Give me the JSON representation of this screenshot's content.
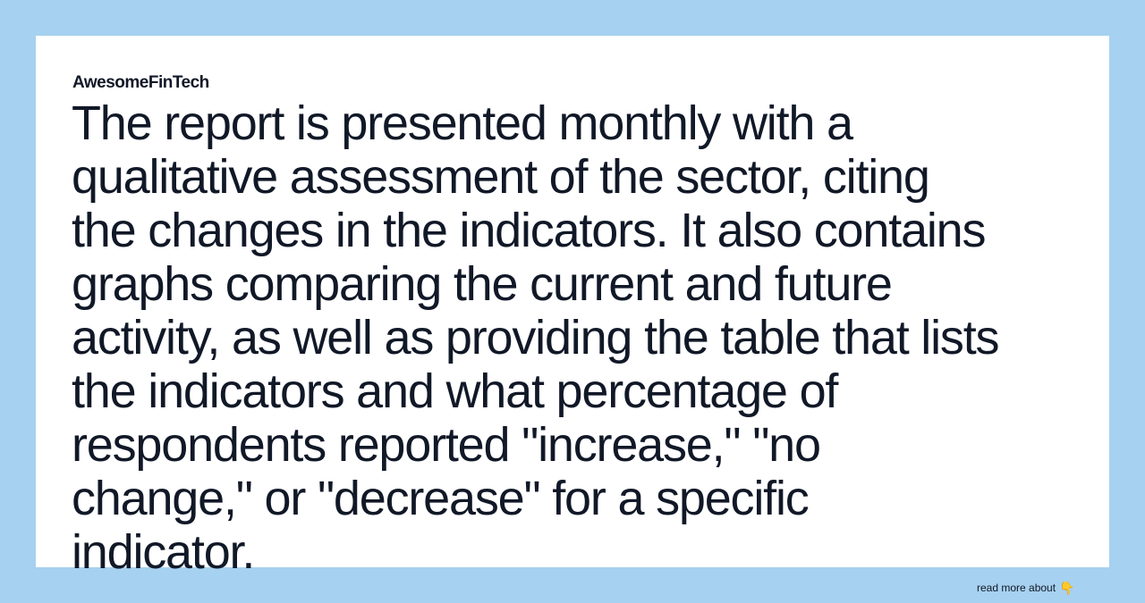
{
  "brand": {
    "name": "AwesomeFinTech"
  },
  "headline": {
    "lines": [
      "The report is presented monthly with a",
      "qualitative assessment of the sector, citing",
      "the changes in the indicators. It also contains",
      "graphs comparing the current and future",
      "activity, as well as providing the table that lists",
      "the indicators and what percentage of",
      "respondents reported \"increase,\" \"no",
      "change,\" or \"decrease\" for a specific",
      "indicator."
    ]
  },
  "footer": {
    "read_more_label": "read more about",
    "icon": "pointing-down-hand-icon",
    "icon_glyph": "👇"
  },
  "colors": {
    "background": "#a6d1f0",
    "card": "#ffffff",
    "text": "#111827"
  }
}
